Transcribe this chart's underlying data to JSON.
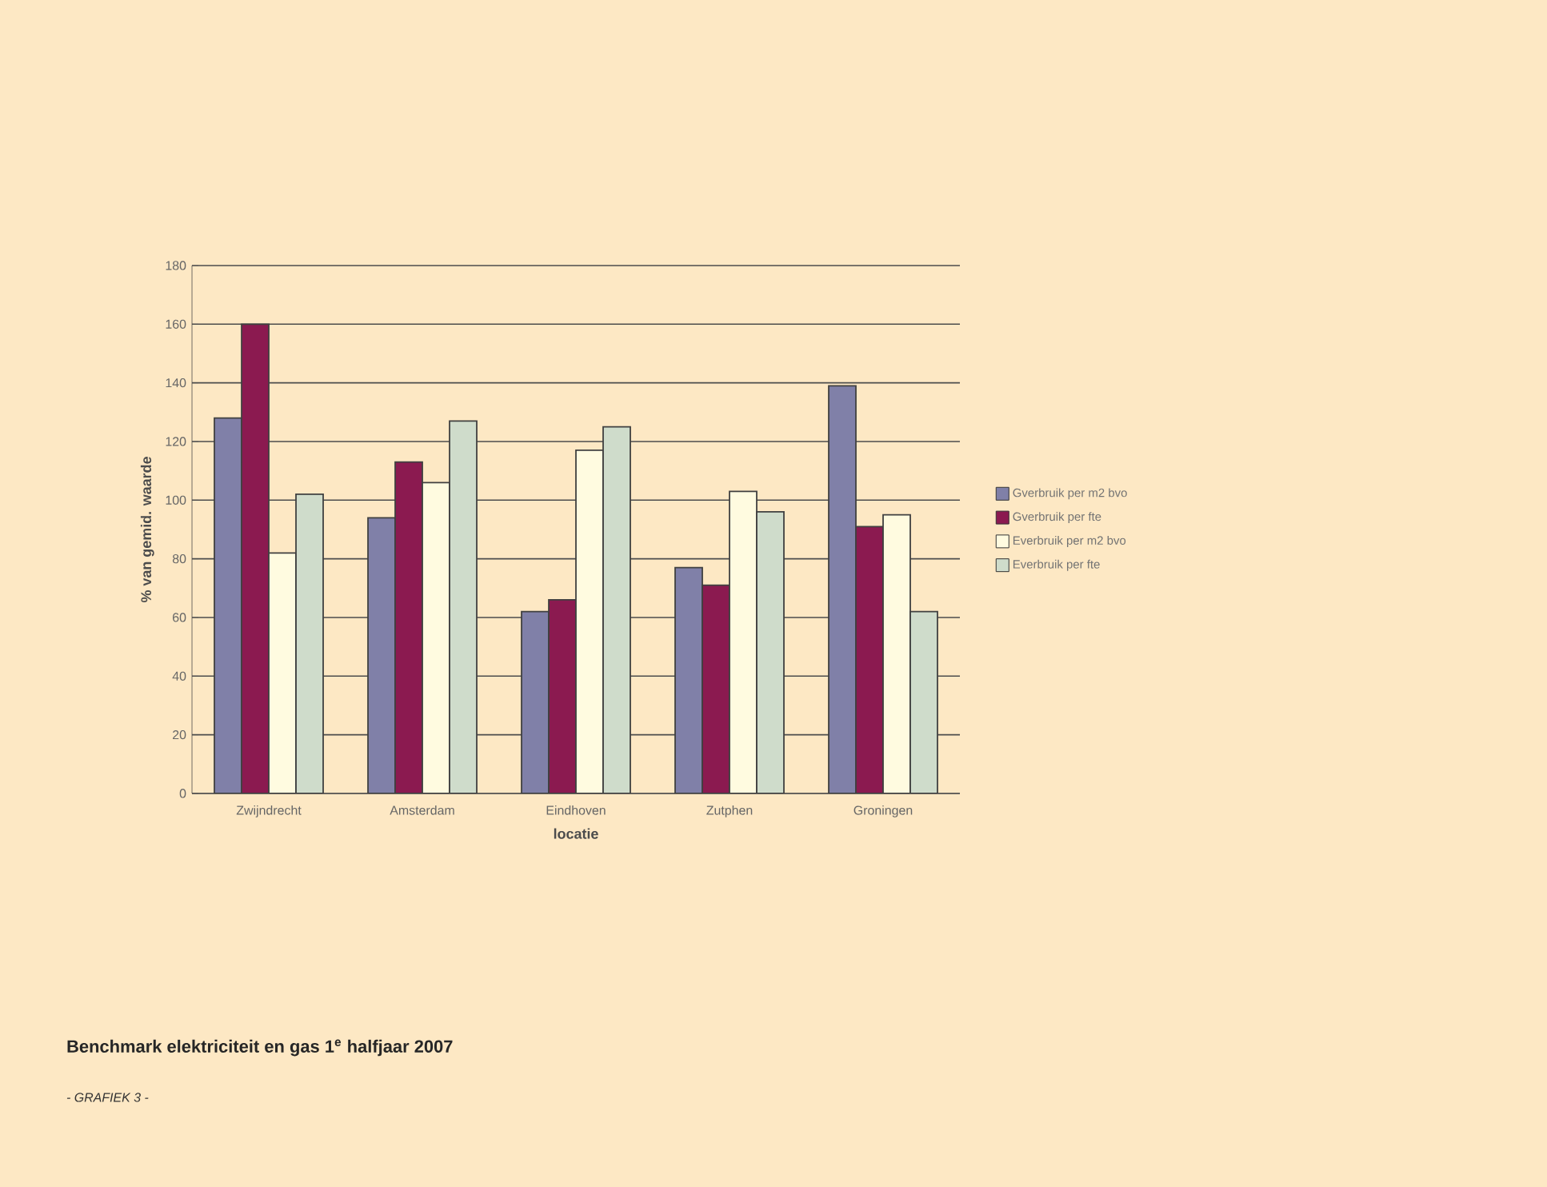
{
  "chart_data": {
    "type": "bar",
    "title": "Benchmark elektriciteit en gas 1$^{e}$ halfjaar 2007",
    "annotations": [
      "- GRAFIEK 3 -"
    ],
    "xlabel": "locatie",
    "ylabel": "% van gemid. waarde",
    "categories": [
      "Zwijndrecht",
      "Amsterdam",
      "Eindhoven",
      "Zutphen",
      "Groningen"
    ],
    "series": [
      {
        "name": "Gverbruik per m2 bvo",
        "color": "#8080a8",
        "values": [
          128,
          94,
          62,
          77,
          139
        ]
      },
      {
        "name": "Gverbruik per fte",
        "color": "#8b1a50",
        "values": [
          160,
          113,
          66,
          71,
          91
        ]
      },
      {
        "name": "Everbruik per m2 bvo",
        "color": "#fffbe0",
        "values": [
          82,
          106,
          117,
          103,
          95
        ]
      },
      {
        "name": "Everbruik per fte",
        "color": "#cfdccb",
        "values": [
          102,
          127,
          125,
          96,
          62
        ]
      }
    ],
    "ylim": [
      0,
      180
    ],
    "yticks": [
      0,
      20,
      40,
      60,
      80,
      100,
      120,
      140,
      160,
      180
    ],
    "grid": "y",
    "legend": "right"
  }
}
